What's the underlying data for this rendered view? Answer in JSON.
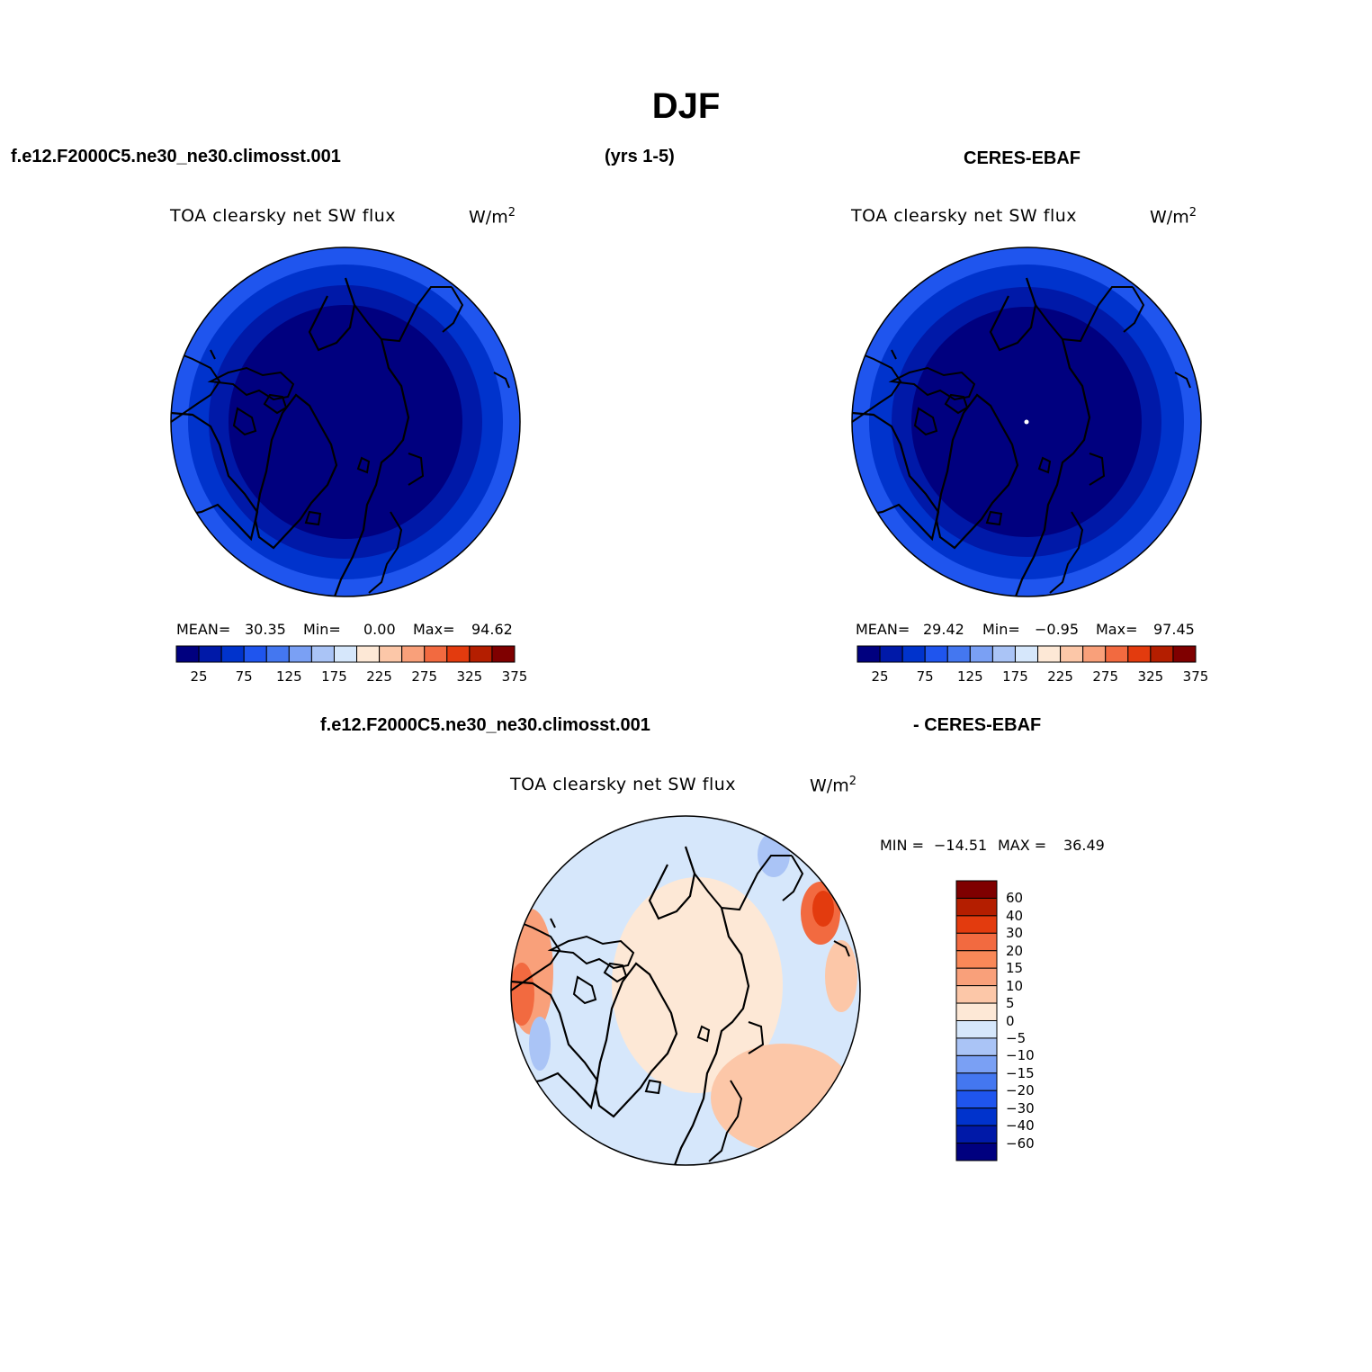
{
  "title": "DJF",
  "header": {
    "case_left": "f.e12.F2000C5.ne30_ne30.climosst.001",
    "years": "(yrs 1-5)",
    "case_right": "CERES-EBAF",
    "diff_left": "f.e12.F2000C5.ne30_ne30.climosst.001",
    "diff_right": "- CERES-EBAF"
  },
  "panels": [
    {
      "variable": "TOA clearsky net SW flux",
      "units_base": "W/m",
      "units_exp": "2",
      "stats": {
        "mean_label": "MEAN=",
        "mean": "30.35",
        "min_label": "Min=",
        "min": "0.00",
        "max_label": "Max=",
        "max": "94.62"
      }
    },
    {
      "variable": "TOA clearsky net SW flux",
      "units_base": "W/m",
      "units_exp": "2",
      "stats": {
        "mean_label": "MEAN=",
        "mean": "29.42",
        "min_label": "Min=",
        "min": "−0.95",
        "max_label": "Max=",
        "max": "97.45"
      }
    }
  ],
  "diff_panel": {
    "variable": "TOA clearsky net SW flux",
    "units_base": "W/m",
    "units_exp": "2",
    "min_label": "MIN =",
    "min": "−14.51",
    "max_label": "MAX =",
    "max": "36.49"
  },
  "colorbar_main": {
    "colors": [
      "#00007f",
      "#0019a8",
      "#0033cc",
      "#1f55ee",
      "#4477f0",
      "#7aa0f4",
      "#aac4f6",
      "#d6e7fb",
      "#fde8d6",
      "#fcc7a8",
      "#f9a07a",
      "#f26a40",
      "#e33b0e",
      "#b41e00",
      "#7f0000"
    ],
    "labels": [
      "25",
      "75",
      "125",
      "175",
      "225",
      "275",
      "325",
      "375"
    ]
  },
  "colorbar_diff": {
    "colors": [
      "#7f0000",
      "#b41e00",
      "#e33b0e",
      "#f26a40",
      "#f98858",
      "#f9a07a",
      "#fcc7a8",
      "#fde8d6",
      "#d6e7fb",
      "#aac4f6",
      "#7aa0f4",
      "#4477f0",
      "#1f55ee",
      "#0033cc",
      "#0019a8",
      "#00007f"
    ],
    "labels": [
      "60",
      "40",
      "30",
      "20",
      "15",
      "10",
      "5",
      "0",
      "−5",
      "−10",
      "−15",
      "−20",
      "−30",
      "−40",
      "−60"
    ]
  }
}
